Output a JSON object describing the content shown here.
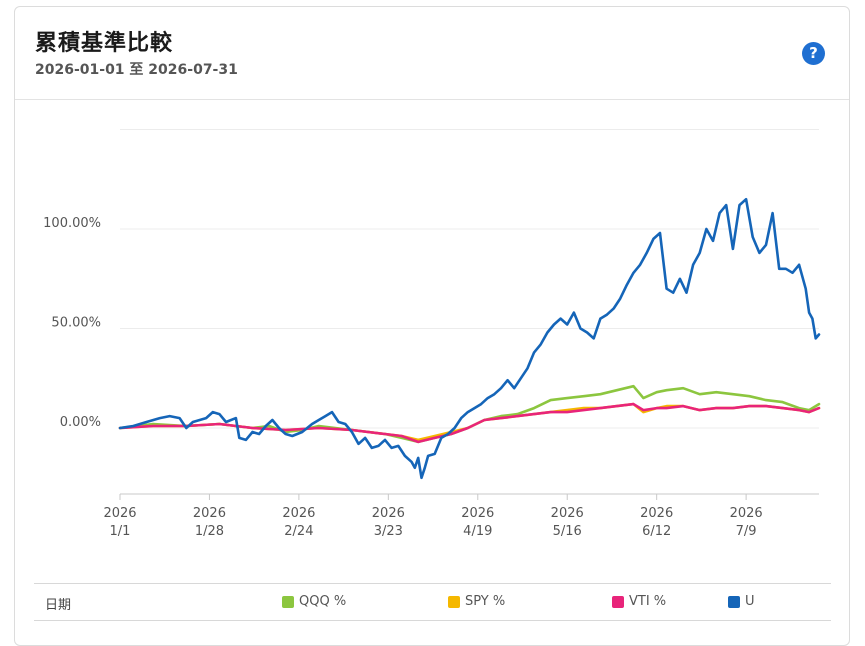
{
  "header": {
    "title": "累積基準比較",
    "subtitle": "2026-01-01 至 2026-07-31",
    "help_icon": "question-icon",
    "help_label": "?"
  },
  "legend": {
    "date_label": "日期",
    "items": [
      {
        "label": "QQQ %",
        "color": "#8cc63f"
      },
      {
        "label": "SPY %",
        "color": "#f5b800"
      },
      {
        "label": "VTI %",
        "color": "#e8247a"
      },
      {
        "label": "U",
        "color": "#1565b8"
      }
    ]
  },
  "chart_data": {
    "type": "line",
    "y_ticks": [
      "100.00%",
      "50.00%",
      "0.00%"
    ],
    "y_tick_values": [
      100,
      50,
      0
    ],
    "ylim": [
      -35,
      150
    ],
    "x_tick_labels": [
      {
        "year": "2026",
        "date": "1/1"
      },
      {
        "year": "2026",
        "date": "1/28"
      },
      {
        "year": "2026",
        "date": "2/24"
      },
      {
        "year": "2026",
        "date": "3/23"
      },
      {
        "year": "2026",
        "date": "4/19"
      },
      {
        "year": "2026",
        "date": "5/16"
      },
      {
        "year": "2026",
        "date": "6/12"
      },
      {
        "year": "2026",
        "date": "7/9"
      }
    ],
    "x_tick_days": [
      0,
      27,
      54,
      81,
      108,
      135,
      162,
      189
    ],
    "xlim_days": [
      0,
      211
    ],
    "grid": "horizontal",
    "series": [
      {
        "name": "QQQ %",
        "color": "#8cc63f",
        "points": [
          [
            0,
            0
          ],
          [
            10,
            2
          ],
          [
            20,
            1
          ],
          [
            30,
            2
          ],
          [
            40,
            0
          ],
          [
            45,
            1
          ],
          [
            50,
            -2
          ],
          [
            55,
            -1
          ],
          [
            60,
            1
          ],
          [
            65,
            0
          ],
          [
            70,
            -1
          ],
          [
            75,
            -2
          ],
          [
            80,
            -3
          ],
          [
            85,
            -5
          ],
          [
            90,
            -7
          ],
          [
            95,
            -5
          ],
          [
            100,
            -3
          ],
          [
            105,
            0
          ],
          [
            110,
            4
          ],
          [
            115,
            6
          ],
          [
            120,
            7
          ],
          [
            125,
            10
          ],
          [
            130,
            14
          ],
          [
            135,
            15
          ],
          [
            140,
            16
          ],
          [
            145,
            17
          ],
          [
            150,
            19
          ],
          [
            155,
            21
          ],
          [
            158,
            15
          ],
          [
            162,
            18
          ],
          [
            165,
            19
          ],
          [
            170,
            20
          ],
          [
            175,
            17
          ],
          [
            180,
            18
          ],
          [
            185,
            17
          ],
          [
            190,
            16
          ],
          [
            195,
            14
          ],
          [
            200,
            13
          ],
          [
            205,
            10
          ],
          [
            208,
            9
          ],
          [
            211,
            12
          ]
        ]
      },
      {
        "name": "SPY %",
        "color": "#f5b800",
        "points": [
          [
            0,
            0
          ],
          [
            10,
            1
          ],
          [
            20,
            1
          ],
          [
            30,
            2
          ],
          [
            40,
            0
          ],
          [
            50,
            -1
          ],
          [
            60,
            0
          ],
          [
            70,
            -1
          ],
          [
            80,
            -3
          ],
          [
            85,
            -4
          ],
          [
            90,
            -6
          ],
          [
            95,
            -4
          ],
          [
            100,
            -2
          ],
          [
            105,
            0
          ],
          [
            110,
            4
          ],
          [
            115,
            5
          ],
          [
            120,
            6
          ],
          [
            125,
            7
          ],
          [
            130,
            8
          ],
          [
            135,
            9
          ],
          [
            140,
            10
          ],
          [
            145,
            10
          ],
          [
            150,
            11
          ],
          [
            155,
            12
          ],
          [
            158,
            8
          ],
          [
            162,
            10
          ],
          [
            165,
            11
          ],
          [
            170,
            11
          ],
          [
            175,
            9
          ],
          [
            180,
            10
          ],
          [
            185,
            10
          ],
          [
            190,
            11
          ],
          [
            195,
            11
          ],
          [
            200,
            10
          ],
          [
            205,
            9
          ],
          [
            208,
            8
          ],
          [
            211,
            10
          ]
        ]
      },
      {
        "name": "VTI %",
        "color": "#e8247a",
        "points": [
          [
            0,
            0
          ],
          [
            10,
            1
          ],
          [
            20,
            1
          ],
          [
            30,
            2
          ],
          [
            40,
            0
          ],
          [
            50,
            -1
          ],
          [
            60,
            0
          ],
          [
            70,
            -1
          ],
          [
            80,
            -3
          ],
          [
            85,
            -4
          ],
          [
            90,
            -7
          ],
          [
            95,
            -5
          ],
          [
            100,
            -3
          ],
          [
            105,
            0
          ],
          [
            110,
            4
          ],
          [
            115,
            5
          ],
          [
            120,
            6
          ],
          [
            125,
            7
          ],
          [
            130,
            8
          ],
          [
            135,
            8
          ],
          [
            140,
            9
          ],
          [
            145,
            10
          ],
          [
            150,
            11
          ],
          [
            155,
            12
          ],
          [
            158,
            9
          ],
          [
            162,
            10
          ],
          [
            165,
            10
          ],
          [
            170,
            11
          ],
          [
            175,
            9
          ],
          [
            180,
            10
          ],
          [
            185,
            10
          ],
          [
            190,
            11
          ],
          [
            195,
            11
          ],
          [
            200,
            10
          ],
          [
            205,
            9
          ],
          [
            208,
            8
          ],
          [
            211,
            10
          ]
        ]
      },
      {
        "name": "U",
        "color": "#1565b8",
        "points": [
          [
            0,
            0
          ],
          [
            4,
            1
          ],
          [
            8,
            3
          ],
          [
            12,
            5
          ],
          [
            15,
            6
          ],
          [
            18,
            5
          ],
          [
            20,
            0
          ],
          [
            22,
            3
          ],
          [
            26,
            5
          ],
          [
            28,
            8
          ],
          [
            30,
            7
          ],
          [
            32,
            3
          ],
          [
            35,
            5
          ],
          [
            36,
            -5
          ],
          [
            38,
            -6
          ],
          [
            40,
            -2
          ],
          [
            42,
            -3
          ],
          [
            44,
            1
          ],
          [
            46,
            4
          ],
          [
            48,
            0
          ],
          [
            50,
            -3
          ],
          [
            52,
            -4
          ],
          [
            55,
            -2
          ],
          [
            58,
            2
          ],
          [
            60,
            4
          ],
          [
            62,
            6
          ],
          [
            64,
            8
          ],
          [
            66,
            3
          ],
          [
            68,
            2
          ],
          [
            70,
            -2
          ],
          [
            72,
            -8
          ],
          [
            74,
            -5
          ],
          [
            76,
            -10
          ],
          [
            78,
            -9
          ],
          [
            80,
            -6
          ],
          [
            82,
            -10
          ],
          [
            84,
            -9
          ],
          [
            86,
            -14
          ],
          [
            88,
            -17
          ],
          [
            89,
            -20
          ],
          [
            90,
            -15
          ],
          [
            91,
            -25
          ],
          [
            92,
            -20
          ],
          [
            93,
            -14
          ],
          [
            95,
            -13
          ],
          [
            97,
            -5
          ],
          [
            99,
            -3
          ],
          [
            101,
            0
          ],
          [
            103,
            5
          ],
          [
            105,
            8
          ],
          [
            107,
            10
          ],
          [
            109,
            12
          ],
          [
            111,
            15
          ],
          [
            113,
            17
          ],
          [
            115,
            20
          ],
          [
            117,
            24
          ],
          [
            119,
            20
          ],
          [
            121,
            25
          ],
          [
            123,
            30
          ],
          [
            125,
            38
          ],
          [
            127,
            42
          ],
          [
            129,
            48
          ],
          [
            131,
            52
          ],
          [
            133,
            55
          ],
          [
            135,
            52
          ],
          [
            137,
            58
          ],
          [
            139,
            50
          ],
          [
            141,
            48
          ],
          [
            143,
            45
          ],
          [
            145,
            55
          ],
          [
            147,
            57
          ],
          [
            149,
            60
          ],
          [
            151,
            65
          ],
          [
            153,
            72
          ],
          [
            155,
            78
          ],
          [
            157,
            82
          ],
          [
            159,
            88
          ],
          [
            161,
            95
          ],
          [
            163,
            98
          ],
          [
            165,
            70
          ],
          [
            167,
            68
          ],
          [
            169,
            75
          ],
          [
            171,
            68
          ],
          [
            173,
            82
          ],
          [
            175,
            88
          ],
          [
            177,
            100
          ],
          [
            179,
            94
          ],
          [
            181,
            108
          ],
          [
            183,
            112
          ],
          [
            185,
            90
          ],
          [
            187,
            112
          ],
          [
            189,
            115
          ],
          [
            191,
            96
          ],
          [
            193,
            88
          ],
          [
            195,
            92
          ],
          [
            197,
            108
          ],
          [
            199,
            80
          ],
          [
            201,
            80
          ],
          [
            203,
            78
          ],
          [
            205,
            82
          ],
          [
            207,
            70
          ],
          [
            208,
            58
          ],
          [
            209,
            55
          ],
          [
            210,
            45
          ],
          [
            211,
            47
          ]
        ]
      }
    ]
  }
}
